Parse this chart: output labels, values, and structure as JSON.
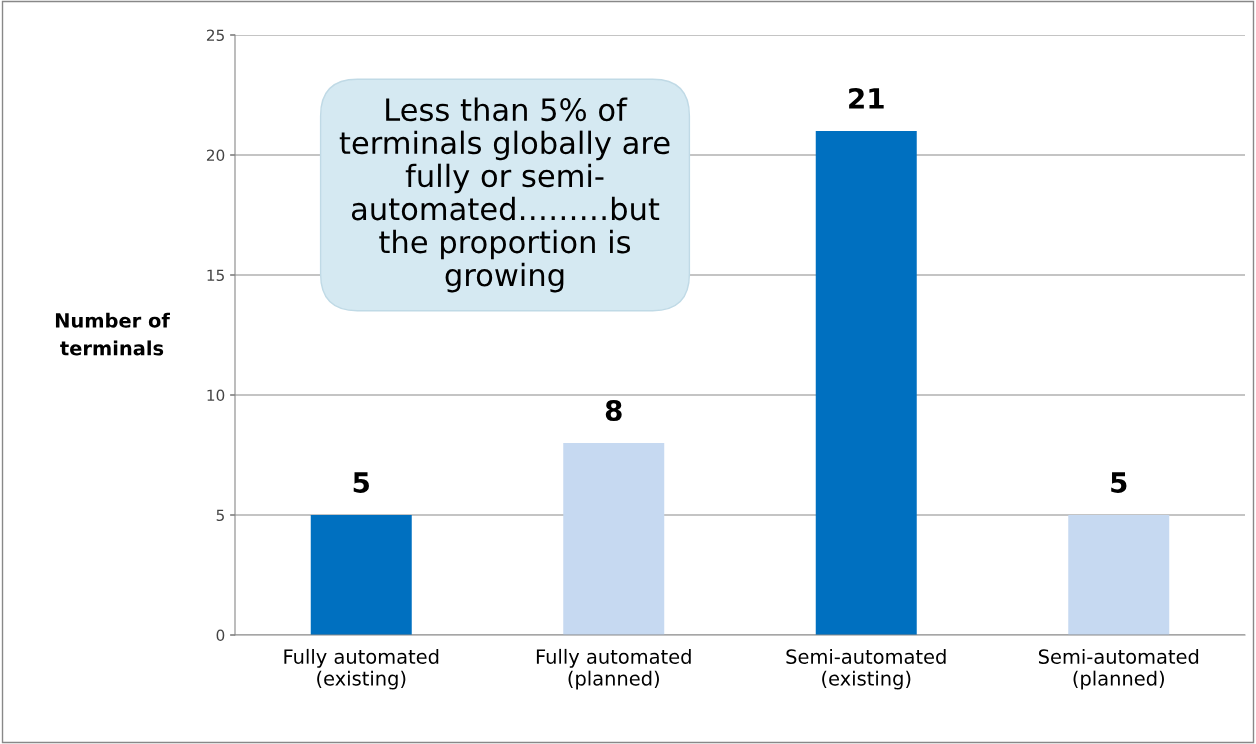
{
  "chart_data": {
    "type": "bar",
    "ylabel": "Number of\nterminals",
    "categories": [
      "Fully automated\n(existing)",
      "Fully automated\n(planned)",
      "Semi-automated\n(existing)",
      "Semi-automated\n(planned)"
    ],
    "values": [
      5,
      8,
      21,
      5
    ],
    "colors": [
      "#0070c0",
      "#c6d9f1",
      "#0070c0",
      "#c6d9f1"
    ],
    "ylim": [
      0,
      25
    ],
    "yticks": [
      0,
      5,
      10,
      15,
      20,
      25
    ],
    "grid": "y",
    "data_labels": true,
    "annotations": [
      "Less than 5% of\nterminals globally are\nfully or semi-\nautomated………but\nthe proportion is\ngrowing"
    ]
  }
}
